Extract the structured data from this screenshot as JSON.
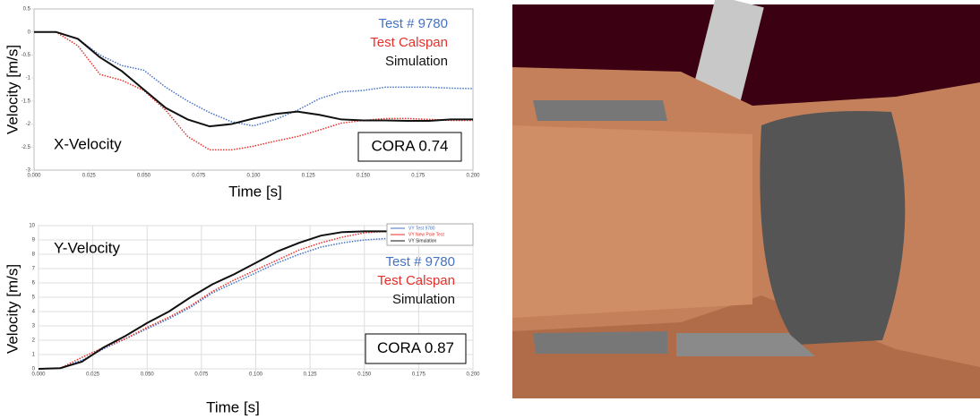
{
  "chart_data": [
    {
      "type": "line",
      "y_label": "Velocity [m/s]",
      "x_label": "Time [s]",
      "annotation": "X-Velocity",
      "score": "CORA 0.74",
      "x": [
        0,
        0.01,
        0.02,
        0.03,
        0.04,
        0.05,
        0.06,
        0.07,
        0.08,
        0.09,
        0.1,
        0.11,
        0.12,
        0.13,
        0.14,
        0.15,
        0.16,
        0.17,
        0.18,
        0.19,
        0.2
      ],
      "series": [
        {
          "name": "Test # 9780",
          "color": "#4472c4",
          "style": "dotted",
          "values": [
            0,
            0,
            -0.15,
            -0.5,
            -0.73,
            -0.83,
            -1.2,
            -1.5,
            -1.75,
            -1.95,
            -2.04,
            -1.9,
            -1.7,
            -1.45,
            -1.3,
            -1.27,
            -1.2,
            -1.2,
            -1.2,
            -1.22,
            -1.23
          ]
        },
        {
          "name": "Test Calspan",
          "color": "#e8302a",
          "style": "dotted",
          "values": [
            0,
            0,
            -0.3,
            -0.92,
            -1.05,
            -1.27,
            -1.7,
            -2.27,
            -2.56,
            -2.56,
            -2.48,
            -2.37,
            -2.27,
            -2.13,
            -1.98,
            -1.92,
            -1.88,
            -1.88,
            -1.9,
            -1.92,
            -1.92
          ]
        },
        {
          "name": "Simulation",
          "color": "#111111",
          "style": "solid",
          "values": [
            0,
            0,
            -0.15,
            -0.55,
            -0.85,
            -1.25,
            -1.65,
            -1.9,
            -2.05,
            -2.0,
            -1.88,
            -1.78,
            -1.73,
            -1.8,
            -1.9,
            -1.92,
            -1.92,
            -1.93,
            -1.93,
            -1.9,
            -1.9
          ]
        }
      ],
      "xlim": [
        0,
        0.2
      ],
      "ylim": [
        -3,
        0.5
      ],
      "xticks": [
        {
          "value": 0,
          "label": "0.000"
        },
        {
          "value": 0.025,
          "label": "0.025"
        },
        {
          "value": 0.05,
          "label": "0.050"
        },
        {
          "value": 0.075,
          "label": "0.075"
        },
        {
          "value": 0.1,
          "label": "0.100"
        },
        {
          "value": 0.125,
          "label": "0.125"
        },
        {
          "value": 0.15,
          "label": "0.150"
        },
        {
          "value": 0.175,
          "label": "0.175"
        },
        {
          "value": 0.2,
          "label": "0.200"
        }
      ],
      "yticks": [
        0.5,
        0,
        -0.5,
        -1,
        -1.5,
        -2,
        -2.5,
        -3
      ],
      "grid": false
    },
    {
      "type": "line",
      "y_label": "Velocity [m/s]",
      "x_label": "Time [s]",
      "annotation": "Y-Velocity",
      "score": "CORA 0.87",
      "inset_legend": [
        "VY Test 9780",
        "VY New Pole Test",
        "VY Simulation"
      ],
      "x": [
        0,
        0.01,
        0.02,
        0.03,
        0.04,
        0.05,
        0.06,
        0.07,
        0.08,
        0.09,
        0.1,
        0.11,
        0.12,
        0.13,
        0.14,
        0.15,
        0.16,
        0.17,
        0.18,
        0.19,
        0.2
      ],
      "series": [
        {
          "name": "Test # 9780",
          "color": "#4472c4",
          "style": "dotted",
          "values": [
            0,
            0.05,
            0.6,
            1.4,
            2.1,
            2.8,
            3.5,
            4.3,
            5.3,
            6.0,
            6.7,
            7.4,
            8.0,
            8.5,
            8.8,
            9.0,
            9.1,
            9.1,
            9.0,
            9.0,
            8.95
          ]
        },
        {
          "name": "Test Calspan",
          "color": "#e8302a",
          "style": "dotted",
          "values": [
            0,
            0.05,
            0.8,
            1.5,
            2.1,
            2.9,
            3.6,
            4.4,
            5.4,
            6.2,
            6.9,
            7.6,
            8.3,
            8.8,
            9.2,
            9.5,
            9.6,
            9.6,
            9.5,
            9.4,
            9.35
          ]
        },
        {
          "name": "Simulation",
          "color": "#111111",
          "style": "solid",
          "values": [
            0,
            0.05,
            0.5,
            1.5,
            2.3,
            3.2,
            4.0,
            5.0,
            5.9,
            6.6,
            7.4,
            8.2,
            8.8,
            9.3,
            9.55,
            9.6,
            9.6,
            9.6,
            9.55,
            9.5,
            9.5
          ]
        }
      ],
      "xlim": [
        0,
        0.2
      ],
      "ylim": [
        0,
        10
      ],
      "xticks": [
        {
          "value": 0,
          "label": "0.000"
        },
        {
          "value": 0.025,
          "label": "0.025"
        },
        {
          "value": 0.05,
          "label": "0.050"
        },
        {
          "value": 0.075,
          "label": "0.075"
        },
        {
          "value": 0.1,
          "label": "0.100"
        },
        {
          "value": 0.125,
          "label": "0.125"
        },
        {
          "value": 0.15,
          "label": "0.150"
        },
        {
          "value": 0.175,
          "label": "0.175"
        },
        {
          "value": 0.2,
          "label": "0.200"
        }
      ],
      "yticks": [
        0,
        1,
        2,
        3,
        4,
        5,
        6,
        7,
        8,
        9,
        10
      ],
      "grid": true
    }
  ]
}
